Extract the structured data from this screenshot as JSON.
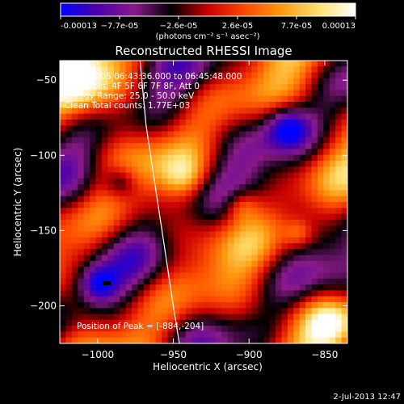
{
  "chart_data": {
    "type": "heatmap",
    "title": "Reconstructed RHESSI Image",
    "xlabel": "Heliocentric X (arcsec)",
    "ylabel": "Heliocentric Y (arcsec)",
    "xlim": [
      -1025,
      -835
    ],
    "ylim": [
      -225,
      -37
    ],
    "x_ticks": [
      -1000,
      -950,
      -900,
      -850
    ],
    "x_tick_labels": [
      "−1000",
      "−950",
      "−900",
      "−850"
    ],
    "y_ticks": [
      -50,
      -100,
      -150,
      -200
    ],
    "y_tick_labels": [
      "−50",
      "−100",
      "−150",
      "−200"
    ],
    "colorbar": {
      "range": [
        -0.00013,
        0.00013
      ],
      "tick_labels": [
        "-0.00013",
        "−7.7e-05",
        "−2.6e-05",
        "2.6e-05",
        "7.7e-05",
        "0.00013"
      ],
      "units_label": "(photons cm⁻² s⁻¹ asec⁻²)",
      "colors": [
        "#0000ff",
        "#4b00a8",
        "#8a1a8a",
        "#000000",
        "#c80000",
        "#ff4a00",
        "#ff9a10",
        "#ffe070",
        "#ffffff"
      ]
    },
    "annotations": [
      "9-Jan-2005 06:43:36.000 to 06:45:48.000",
      "Detectors: 4F 5F 6F 7F 8F, Att 0",
      "Energy Range: 25.0 - 50.0 keV",
      "Clean    Total counts: 1.77E+03"
    ],
    "peak_label": "Position of Peak = [-884,-204]",
    "peak_position": [
      -884,
      -204
    ],
    "grid": false
  },
  "footer": {
    "date": "2-Jul-2013 12:47"
  }
}
